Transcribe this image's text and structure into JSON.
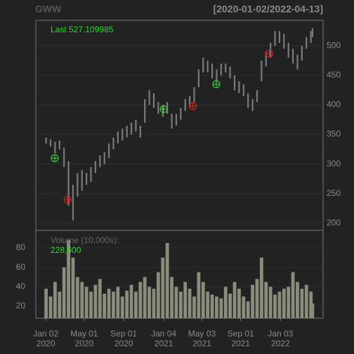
{
  "chart_data": {
    "type": "ohlc-volume",
    "title": "GWW",
    "date_range": "[2020-01-02/2022-04-13]",
    "last_label": "Last 527.109985",
    "volume_label": "Volume (10,000s):",
    "volume_last_label": "228,600",
    "price_color": "#7a7a7a",
    "volume_color": "#8c8c7c",
    "grid": true,
    "xlim": [
      "2019-12-02",
      "2022-05-16"
    ],
    "ylim": [
      188,
      543
    ],
    "yticks": [
      200,
      250,
      300,
      350,
      400,
      450,
      500
    ],
    "volume_ylim": [
      7.7,
      98
    ],
    "volume_yticks": [
      20,
      40,
      60,
      80
    ],
    "xticks": [
      {
        "value": "2020-01-02",
        "label": "Jan 02"
      },
      {
        "value": "2020-05-01",
        "label": "May 01"
      },
      {
        "value": "2020-09-01",
        "label": "Sep 01"
      },
      {
        "value": "2021-01-04",
        "label": "Jan 04"
      },
      {
        "value": "2021-05-03",
        "label": "May 03"
      },
      {
        "value": "2021-09-01",
        "label": "Sep 01"
      },
      {
        "value": "2022-01-03",
        "label": "Jan 03"
      }
    ],
    "xtick_years": [
      "2020",
      "2020",
      "2020",
      "2021",
      "2021",
      "2021",
      "2022"
    ],
    "x": [
      "2020-01-03",
      "2020-01-17",
      "2020-01-31",
      "2020-02-14",
      "2020-02-28",
      "2020-03-13",
      "2020-03-27",
      "2020-04-10",
      "2020-04-24",
      "2020-05-08",
      "2020-05-22",
      "2020-06-05",
      "2020-06-19",
      "2020-07-03",
      "2020-07-17",
      "2020-07-31",
      "2020-08-14",
      "2020-08-28",
      "2020-09-11",
      "2020-09-25",
      "2020-10-09",
      "2020-10-23",
      "2020-11-06",
      "2020-11-20",
      "2020-12-04",
      "2020-12-18",
      "2021-01-01",
      "2021-01-15",
      "2021-01-29",
      "2021-02-12",
      "2021-02-26",
      "2021-03-12",
      "2021-03-26",
      "2021-04-09",
      "2021-04-23",
      "2021-05-07",
      "2021-05-21",
      "2021-06-04",
      "2021-06-18",
      "2021-07-02",
      "2021-07-16",
      "2021-07-30",
      "2021-08-13",
      "2021-08-27",
      "2021-09-10",
      "2021-09-24",
      "2021-10-08",
      "2021-10-22",
      "2021-11-05",
      "2021-11-19",
      "2021-12-03",
      "2021-12-17",
      "2021-12-31",
      "2022-01-14",
      "2022-01-28",
      "2022-02-11",
      "2022-02-25",
      "2022-03-11",
      "2022-03-25",
      "2022-04-08",
      "2022-04-13"
    ],
    "low": [
      335,
      330,
      318,
      325,
      295,
      230,
      205,
      245,
      255,
      265,
      270,
      285,
      295,
      300,
      310,
      325,
      335,
      340,
      345,
      350,
      355,
      345,
      370,
      400,
      395,
      385,
      380,
      385,
      360,
      365,
      375,
      390,
      395,
      405,
      430,
      455,
      455,
      445,
      440,
      450,
      455,
      445,
      425,
      420,
      415,
      395,
      390,
      405,
      440,
      465,
      480,
      500,
      505,
      495,
      480,
      470,
      460,
      475,
      495,
      505,
      515
    ],
    "high": [
      345,
      342,
      338,
      340,
      328,
      305,
      265,
      285,
      290,
      285,
      295,
      305,
      315,
      320,
      335,
      345,
      355,
      360,
      365,
      370,
      375,
      365,
      410,
      425,
      420,
      405,
      400,
      405,
      385,
      385,
      395,
      410,
      415,
      430,
      460,
      480,
      475,
      470,
      460,
      470,
      470,
      465,
      450,
      440,
      435,
      420,
      410,
      425,
      475,
      490,
      505,
      525,
      525,
      520,
      505,
      495,
      485,
      500,
      515,
      525,
      530
    ],
    "volume": [
      38,
      30,
      45,
      35,
      60,
      88,
      70,
      50,
      45,
      40,
      35,
      42,
      48,
      33,
      38,
      35,
      40,
      30,
      36,
      42,
      35,
      45,
      50,
      40,
      38,
      55,
      70,
      85,
      50,
      40,
      35,
      45,
      38,
      30,
      55,
      45,
      35,
      32,
      30,
      28,
      40,
      33,
      45,
      38,
      30,
      25,
      42,
      48,
      70,
      45,
      40,
      32,
      35,
      38,
      40,
      55,
      45,
      38,
      42,
      35,
      22.86
    ],
    "markers": [
      {
        "x": "2020-01-30",
        "value": 310,
        "color": "#33cc33"
      },
      {
        "x": "2020-03-10",
        "value": 240,
        "color": "#cc2222"
      },
      {
        "x": "2021-01-04",
        "value": 393,
        "color": "#33cc33"
      },
      {
        "x": "2021-04-05",
        "value": 398,
        "color": "#cc2222"
      },
      {
        "x": "2021-06-17",
        "value": 435,
        "color": "#33cc33"
      },
      {
        "x": "2021-11-29",
        "value": 487,
        "color": "#cc2222"
      }
    ]
  }
}
